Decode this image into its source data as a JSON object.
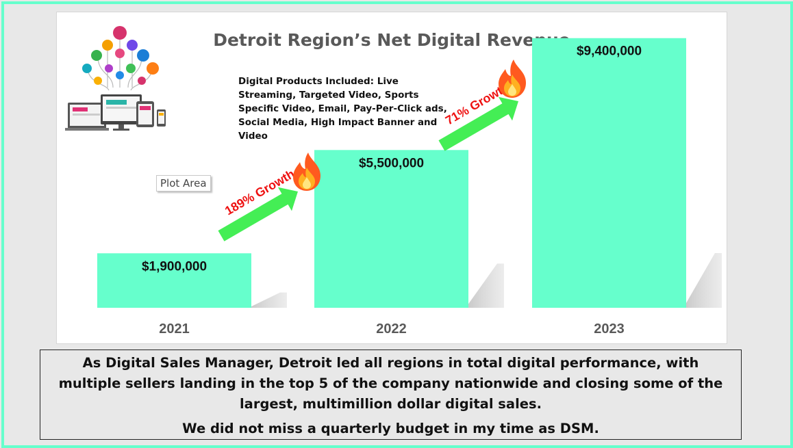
{
  "chart_data": {
    "type": "bar",
    "title": "Detroit Region’s Net Digital Revenue",
    "categories": [
      "2021",
      "2022",
      "2023"
    ],
    "values": [
      1900000,
      5500000,
      9400000
    ],
    "data_labels": [
      "$1,900,000",
      "$5,500,000",
      "$9,400,000"
    ],
    "ylim": [
      0,
      10300000
    ],
    "grid": false,
    "legend": "none",
    "bar_color": "#66ffcc",
    "annotations": [
      {
        "text": "189% Growth",
        "from": "2021",
        "to": "2022"
      },
      {
        "text": "71% Growth",
        "from": "2022",
        "to": "2023"
      }
    ]
  },
  "products_note": "Digital Products Included: Live Streaming, Targeted Video, Sports Specific Video, Email, Pay-Per-Click ads, Social Media, High Impact Banner and Video",
  "plot_area_tooltip": "Plot Area",
  "caption": {
    "main": "As Digital Sales Manager, Detroit led all  regions in total digital performance, with multiple sellers landing in the top 5 of the company nationwide and closing some of the largest, multimillion dollar digital sales.",
    "second": "We did not miss a quarterly budget in my time as DSM."
  },
  "colors": {
    "frame_border": "#66ffcc",
    "bar": "#66ffcc",
    "arrow": "#44ee55",
    "growth_text": "#ee1111",
    "title": "#595959"
  },
  "icons": [
    "devices-illustration",
    "fire-icon"
  ]
}
